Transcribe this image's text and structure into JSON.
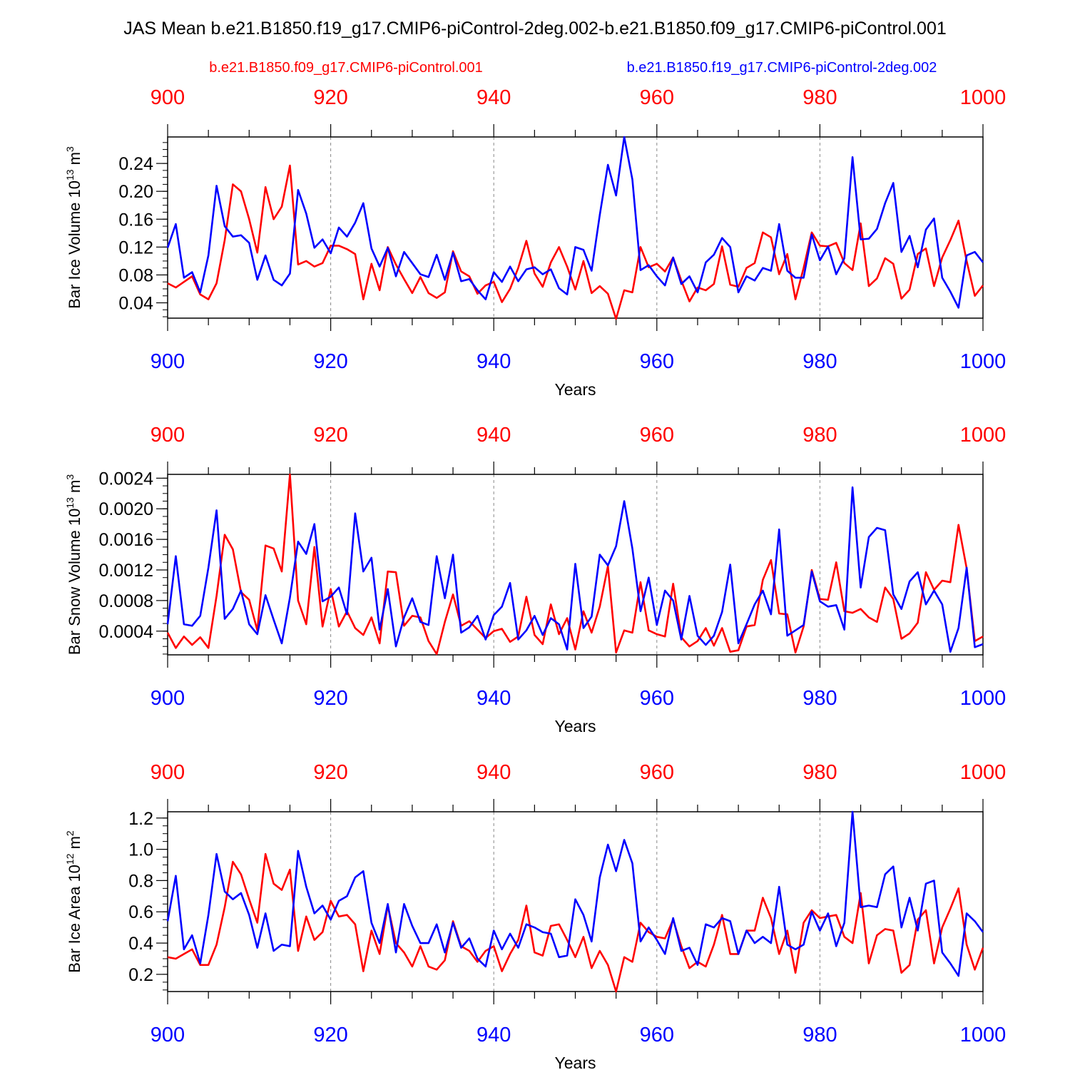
{
  "title": "JAS Mean b.e21.B1850.f19_g17.CMIP6-piControl-2deg.002-b.e21.B1850.f09_g17.CMIP6-piControl.001",
  "colors": {
    "case_a": "#ff0000",
    "case_b": "#0000ff",
    "axis": "#000000",
    "grid": "#888888"
  },
  "legend": {
    "case_a_label": "b.e21.B1850.f09_g17.CMIP6-piControl.001",
    "case_b_label": "b.e21.B1850.f19_g17.CMIP6-piControl-2deg.002"
  },
  "chart_data": [
    {
      "type": "line",
      "title": "",
      "xlabel": "Years",
      "ylabel": "Bar Ice Volume 10",
      "ylabel_exp": "13",
      "ylabel_unit": " m",
      "ylabel_unit_exp": "3",
      "xlim": [
        900,
        1000
      ],
      "ylim": [
        0.018,
        0.278
      ],
      "yticks": [
        0.04,
        0.08,
        0.12,
        0.16,
        0.2,
        0.24
      ],
      "ytick_labels": [
        "0.04",
        "0.08",
        "0.12",
        "0.16",
        "0.20",
        "0.24"
      ],
      "yminor": 0.01,
      "xticks": [
        900,
        920,
        940,
        960,
        980,
        1000
      ],
      "xtick_labels": [
        "900",
        "920",
        "940",
        "960",
        "980",
        "1000"
      ],
      "grid": "vertical dashed at major x ticks",
      "series": [
        {
          "name": "b.e21.B1850.f09_g17.CMIP6-piControl.001",
          "color": "red",
          "x_start": 900,
          "values": [
            0.068,
            0.062,
            0.07,
            0.078,
            0.052,
            0.045,
            0.068,
            0.13,
            0.21,
            0.2,
            0.16,
            0.112,
            0.206,
            0.16,
            0.178,
            0.237,
            0.095,
            0.1,
            0.092,
            0.097,
            0.122,
            0.122,
            0.117,
            0.11,
            0.045,
            0.096,
            0.058,
            0.12,
            0.095,
            0.074,
            0.054,
            0.077,
            0.054,
            0.047,
            0.055,
            0.114,
            0.085,
            0.078,
            0.053,
            0.065,
            0.07,
            0.041,
            0.06,
            0.09,
            0.129,
            0.082,
            0.063,
            0.098,
            0.12,
            0.092,
            0.059,
            0.1,
            0.054,
            0.064,
            0.053,
            0.017,
            0.058,
            0.055,
            0.12,
            0.091,
            0.096,
            0.085,
            0.105,
            0.072,
            0.042,
            0.062,
            0.058,
            0.067,
            0.121,
            0.066,
            0.063,
            0.09,
            0.097,
            0.141,
            0.134,
            0.081,
            0.11,
            0.045,
            0.09,
            0.141,
            0.122,
            0.121,
            0.126,
            0.097,
            0.087,
            0.154,
            0.064,
            0.075,
            0.104,
            0.096,
            0.046,
            0.059,
            0.11,
            0.118,
            0.064,
            0.105,
            0.13,
            0.158,
            0.1,
            0.05,
            0.065
          ]
        },
        {
          "name": "b.e21.B1850.f19_g17.CMIP6-piControl-2deg.002",
          "color": "blue",
          "x_start": 900,
          "values": [
            0.119,
            0.153,
            0.076,
            0.084,
            0.055,
            0.108,
            0.208,
            0.15,
            0.135,
            0.137,
            0.126,
            0.073,
            0.108,
            0.073,
            0.065,
            0.082,
            0.202,
            0.168,
            0.119,
            0.131,
            0.111,
            0.148,
            0.135,
            0.155,
            0.183,
            0.118,
            0.092,
            0.119,
            0.078,
            0.113,
            0.097,
            0.081,
            0.077,
            0.109,
            0.073,
            0.112,
            0.071,
            0.074,
            0.058,
            0.045,
            0.084,
            0.07,
            0.092,
            0.071,
            0.088,
            0.091,
            0.081,
            0.088,
            0.061,
            0.052,
            0.12,
            0.116,
            0.086,
            0.166,
            0.238,
            0.194,
            0.278,
            0.217,
            0.087,
            0.094,
            0.078,
            0.065,
            0.105,
            0.067,
            0.078,
            0.055,
            0.098,
            0.109,
            0.133,
            0.12,
            0.055,
            0.078,
            0.072,
            0.09,
            0.086,
            0.153,
            0.086,
            0.076,
            0.076,
            0.138,
            0.101,
            0.121,
            0.081,
            0.104,
            0.249,
            0.131,
            0.132,
            0.146,
            0.183,
            0.212,
            0.113,
            0.136,
            0.091,
            0.145,
            0.161,
            0.076,
            0.056,
            0.033,
            0.108,
            0.113,
            0.098
          ]
        }
      ]
    },
    {
      "type": "line",
      "title": "",
      "xlabel": "Years",
      "ylabel": "Bar Snow Volume 10",
      "ylabel_exp": "13",
      "ylabel_unit": " m",
      "ylabel_unit_exp": "3",
      "xlim": [
        900,
        1000
      ],
      "ylim": [
        9e-05,
        0.00245
      ],
      "yticks": [
        0.0004,
        0.0008,
        0.0012,
        0.0016,
        0.002,
        0.0024
      ],
      "ytick_labels": [
        "0.0004",
        "0.0008",
        "0.0012",
        "0.0016",
        "0.0020",
        "0.0024"
      ],
      "yminor": 0.0001,
      "xticks": [
        900,
        920,
        940,
        960,
        980,
        1000
      ],
      "xtick_labels": [
        "900",
        "920",
        "940",
        "960",
        "980",
        "1000"
      ],
      "grid": "vertical dashed at major x ticks",
      "series": [
        {
          "name": "b.e21.B1850.f09_g17.CMIP6-piControl.001",
          "color": "red",
          "x_start": 900,
          "values": [
            0.00038,
            0.00018,
            0.00033,
            0.00022,
            0.00032,
            0.00018,
            0.00086,
            0.00166,
            0.00147,
            0.00091,
            0.00081,
            0.00041,
            0.00152,
            0.00148,
            0.00118,
            0.00245,
            0.0008,
            0.00049,
            0.0015,
            0.00046,
            0.00095,
            0.00046,
            0.00066,
            0.00044,
            0.00035,
            0.00058,
            0.00024,
            0.00118,
            0.00117,
            0.00047,
            0.0006,
            0.00058,
            0.00027,
            0.0001,
            0.00052,
            0.00088,
            0.00047,
            0.00053,
            0.00042,
            0.00031,
            0.0004,
            0.00043,
            0.00026,
            0.00033,
            0.00085,
            0.00035,
            0.00023,
            0.00075,
            0.00036,
            0.00057,
            0.00016,
            0.00066,
            0.00038,
            0.00072,
            0.00125,
            0.00012,
            0.00041,
            0.00038,
            0.00104,
            0.00041,
            0.00036,
            0.00033,
            0.00102,
            0.00032,
            0.0002,
            0.00027,
            0.00044,
            0.00021,
            0.00044,
            0.00013,
            0.00015,
            0.00046,
            0.00048,
            0.00107,
            0.00133,
            0.00063,
            0.00062,
            0.00012,
            0.00046,
            0.0012,
            0.00082,
            0.00081,
            0.0013,
            0.00066,
            0.00064,
            0.00069,
            0.00058,
            0.00052,
            0.00097,
            0.00082,
            0.0003,
            0.00037,
            0.00051,
            0.00117,
            0.00094,
            0.00106,
            0.00104,
            0.00179,
            0.00122,
            0.00027,
            0.00033
          ]
        },
        {
          "name": "b.e21.B1850.f19_g17.CMIP6-piControl-2deg.002",
          "color": "blue",
          "x_start": 900,
          "values": [
            0.00049,
            0.00138,
            0.00049,
            0.00047,
            0.0006,
            0.00123,
            0.00198,
            0.00056,
            0.00069,
            0.00093,
            0.00049,
            0.00036,
            0.00087,
            0.00055,
            0.00024,
            0.00084,
            0.00157,
            0.00141,
            0.0018,
            0.00079,
            0.00085,
            0.00097,
            0.00062,
            0.00194,
            0.00118,
            0.00136,
            0.00042,
            0.00095,
            0.0002,
            0.00058,
            0.00083,
            0.00052,
            0.00048,
            0.00138,
            0.00083,
            0.0014,
            0.00038,
            0.00045,
            0.0006,
            0.00029,
            0.00061,
            0.00072,
            0.00103,
            0.00029,
            0.00041,
            0.0006,
            0.00035,
            0.00057,
            0.00049,
            0.00016,
            0.00128,
            0.00044,
            0.00059,
            0.0014,
            0.00126,
            0.00151,
            0.0021,
            0.00148,
            0.00066,
            0.0011,
            0.00048,
            0.00093,
            0.0008,
            0.00029,
            0.00086,
            0.00034,
            0.00022,
            0.00034,
            0.00065,
            0.00127,
            0.00024,
            0.00049,
            0.00075,
            0.00093,
            0.00062,
            0.00173,
            0.00034,
            0.00041,
            0.00048,
            0.00118,
            0.00079,
            0.00072,
            0.00074,
            0.00042,
            0.00228,
            0.00097,
            0.00163,
            0.00175,
            0.00172,
            0.00088,
            0.00069,
            0.00105,
            0.00117,
            0.00075,
            0.00093,
            0.00075,
            0.00013,
            0.00044,
            0.00123,
            0.00019,
            0.00023
          ]
        }
      ]
    },
    {
      "type": "line",
      "title": "",
      "xlabel": "Years",
      "ylabel": "Bar Ice Area 10",
      "ylabel_exp": "12",
      "ylabel_unit": " m",
      "ylabel_unit_exp": "2",
      "xlim": [
        900,
        1000
      ],
      "ylim": [
        0.09,
        1.24
      ],
      "yticks": [
        0.2,
        0.4,
        0.6,
        0.8,
        1.0,
        1.2
      ],
      "ytick_labels": [
        "0.2",
        "0.4",
        "0.6",
        "0.8",
        "1.0",
        "1.2"
      ],
      "yminor": 0.05,
      "xticks": [
        900,
        920,
        940,
        960,
        980,
        1000
      ],
      "xtick_labels": [
        "900",
        "920",
        "940",
        "960",
        "980",
        "1000"
      ],
      "grid": "vertical dashed at major x ticks",
      "series": [
        {
          "name": "b.e21.B1850.f09_g17.CMIP6-piControl.001",
          "color": "red",
          "x_start": 900,
          "values": [
            0.31,
            0.3,
            0.33,
            0.36,
            0.26,
            0.26,
            0.39,
            0.63,
            0.92,
            0.84,
            0.68,
            0.53,
            0.97,
            0.78,
            0.74,
            0.87,
            0.35,
            0.57,
            0.42,
            0.47,
            0.67,
            0.57,
            0.58,
            0.52,
            0.22,
            0.48,
            0.33,
            0.64,
            0.4,
            0.34,
            0.25,
            0.38,
            0.25,
            0.23,
            0.29,
            0.54,
            0.38,
            0.35,
            0.28,
            0.35,
            0.38,
            0.22,
            0.33,
            0.42,
            0.64,
            0.34,
            0.32,
            0.51,
            0.52,
            0.42,
            0.31,
            0.44,
            0.24,
            0.35,
            0.26,
            0.09,
            0.31,
            0.28,
            0.53,
            0.47,
            0.44,
            0.43,
            0.55,
            0.38,
            0.24,
            0.28,
            0.25,
            0.39,
            0.58,
            0.33,
            0.33,
            0.48,
            0.48,
            0.69,
            0.56,
            0.33,
            0.48,
            0.21,
            0.53,
            0.61,
            0.56,
            0.57,
            0.58,
            0.44,
            0.4,
            0.72,
            0.27,
            0.45,
            0.49,
            0.48,
            0.21,
            0.26,
            0.55,
            0.61,
            0.27,
            0.5,
            0.62,
            0.75,
            0.39,
            0.23,
            0.37
          ]
        },
        {
          "name": "b.e21.B1850.f19_g17.CMIP6-piControl-2deg.002",
          "color": "blue",
          "x_start": 900,
          "values": [
            0.54,
            0.83,
            0.36,
            0.45,
            0.27,
            0.58,
            0.97,
            0.73,
            0.68,
            0.72,
            0.58,
            0.37,
            0.59,
            0.35,
            0.39,
            0.38,
            0.99,
            0.76,
            0.59,
            0.64,
            0.55,
            0.67,
            0.7,
            0.82,
            0.86,
            0.53,
            0.4,
            0.65,
            0.34,
            0.65,
            0.51,
            0.4,
            0.4,
            0.52,
            0.34,
            0.53,
            0.37,
            0.43,
            0.3,
            0.25,
            0.48,
            0.36,
            0.46,
            0.37,
            0.52,
            0.5,
            0.47,
            0.46,
            0.31,
            0.32,
            0.68,
            0.58,
            0.41,
            0.82,
            1.03,
            0.86,
            1.06,
            0.91,
            0.41,
            0.5,
            0.42,
            0.33,
            0.56,
            0.35,
            0.37,
            0.26,
            0.52,
            0.5,
            0.56,
            0.54,
            0.33,
            0.48,
            0.4,
            0.44,
            0.4,
            0.76,
            0.39,
            0.36,
            0.39,
            0.6,
            0.48,
            0.59,
            0.38,
            0.53,
            1.24,
            0.63,
            0.64,
            0.63,
            0.84,
            0.89,
            0.5,
            0.69,
            0.48,
            0.78,
            0.8,
            0.34,
            0.27,
            0.19,
            0.59,
            0.54,
            0.47
          ]
        }
      ]
    }
  ]
}
